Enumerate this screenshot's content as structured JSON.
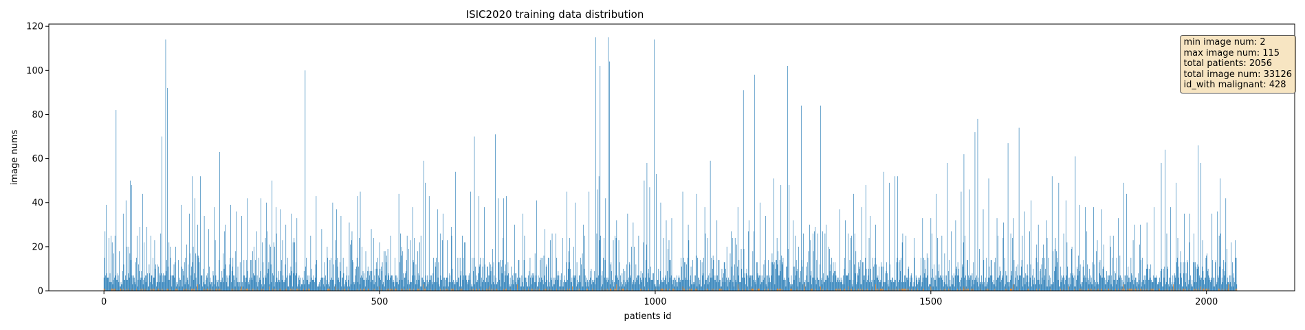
{
  "chart_data": {
    "type": "bar",
    "title": "ISIC2020 training data distribution",
    "xlabel": "patients id",
    "ylabel": "image nums",
    "xlim": [
      -100,
      2160
    ],
    "ylim": [
      0,
      121
    ],
    "xticks": [
      0,
      500,
      1000,
      1500,
      2000
    ],
    "yticks": [
      0,
      20,
      40,
      60,
      80,
      100,
      120
    ],
    "n_patients": 2056,
    "colors": {
      "total": "#1f77b4",
      "malignant": "#ff7f0e"
    },
    "series": [
      {
        "role": "total",
        "peaks": [
          [
            0,
            6
          ],
          [
            2,
            27
          ],
          [
            4,
            39
          ],
          [
            15,
            22
          ],
          [
            20,
            25
          ],
          [
            22,
            82
          ],
          [
            28,
            18
          ],
          [
            35,
            35
          ],
          [
            40,
            41
          ],
          [
            45,
            20
          ],
          [
            48,
            50
          ],
          [
            50,
            48
          ],
          [
            60,
            25
          ],
          [
            65,
            29
          ],
          [
            70,
            44
          ],
          [
            78,
            29
          ],
          [
            85,
            25
          ],
          [
            92,
            23
          ],
          [
            97,
            12
          ],
          [
            105,
            70
          ],
          [
            112,
            114
          ],
          [
            115,
            92
          ],
          [
            120,
            20
          ],
          [
            130,
            20
          ],
          [
            140,
            39
          ],
          [
            155,
            35
          ],
          [
            160,
            52
          ],
          [
            165,
            42
          ],
          [
            170,
            30
          ],
          [
            175,
            52
          ],
          [
            182,
            34
          ],
          [
            190,
            28
          ],
          [
            200,
            38
          ],
          [
            210,
            63
          ],
          [
            220,
            30
          ],
          [
            230,
            39
          ],
          [
            240,
            36
          ],
          [
            250,
            34
          ],
          [
            260,
            42
          ],
          [
            270,
            18
          ],
          [
            285,
            42
          ],
          [
            295,
            40
          ],
          [
            305,
            50
          ],
          [
            312,
            38
          ],
          [
            320,
            37
          ],
          [
            330,
            30
          ],
          [
            340,
            35
          ],
          [
            350,
            33
          ],
          [
            365,
            100
          ],
          [
            375,
            25
          ],
          [
            385,
            43
          ],
          [
            395,
            28
          ],
          [
            405,
            20
          ],
          [
            415,
            40
          ],
          [
            422,
            37
          ],
          [
            430,
            34
          ],
          [
            445,
            31
          ],
          [
            460,
            43
          ],
          [
            465,
            45
          ],
          [
            475,
            18
          ],
          [
            485,
            28
          ],
          [
            500,
            22
          ],
          [
            510,
            18
          ],
          [
            520,
            25
          ],
          [
            535,
            44
          ],
          [
            540,
            20
          ],
          [
            550,
            25
          ],
          [
            560,
            38
          ],
          [
            575,
            25
          ],
          [
            580,
            59
          ],
          [
            583,
            49
          ],
          [
            590,
            43
          ],
          [
            605,
            37
          ],
          [
            615,
            35
          ],
          [
            630,
            29
          ],
          [
            638,
            54
          ],
          [
            650,
            25
          ],
          [
            665,
            45
          ],
          [
            672,
            70
          ],
          [
            680,
            43
          ],
          [
            690,
            38
          ],
          [
            710,
            71
          ],
          [
            715,
            42
          ],
          [
            725,
            42
          ],
          [
            730,
            43
          ],
          [
            745,
            30
          ],
          [
            760,
            35
          ],
          [
            785,
            41
          ],
          [
            800,
            28
          ],
          [
            820,
            26
          ],
          [
            840,
            45
          ],
          [
            855,
            40
          ],
          [
            870,
            30
          ],
          [
            880,
            45
          ],
          [
            892,
            115
          ],
          [
            895,
            46
          ],
          [
            898,
            52
          ],
          [
            900,
            102
          ],
          [
            910,
            42
          ],
          [
            915,
            115
          ],
          [
            917,
            104
          ],
          [
            930,
            32
          ],
          [
            950,
            35
          ],
          [
            960,
            31
          ],
          [
            970,
            25
          ],
          [
            980,
            50
          ],
          [
            985,
            58
          ],
          [
            990,
            47
          ],
          [
            998,
            114
          ],
          [
            1002,
            53
          ],
          [
            1010,
            40
          ],
          [
            1020,
            32
          ],
          [
            1030,
            33
          ],
          [
            1050,
            45
          ],
          [
            1060,
            30
          ],
          [
            1075,
            44
          ],
          [
            1090,
            38
          ],
          [
            1100,
            59
          ],
          [
            1112,
            32
          ],
          [
            1130,
            20
          ],
          [
            1140,
            24
          ],
          [
            1150,
            38
          ],
          [
            1160,
            91
          ],
          [
            1170,
            32
          ],
          [
            1180,
            98
          ],
          [
            1190,
            40
          ],
          [
            1200,
            34
          ],
          [
            1215,
            51
          ],
          [
            1228,
            48
          ],
          [
            1240,
            102
          ],
          [
            1243,
            48
          ],
          [
            1250,
            32
          ],
          [
            1265,
            84
          ],
          [
            1280,
            30
          ],
          [
            1290,
            29
          ],
          [
            1300,
            84
          ],
          [
            1310,
            30
          ],
          [
            1320,
            15
          ],
          [
            1335,
            37
          ],
          [
            1345,
            32
          ],
          [
            1360,
            44
          ],
          [
            1375,
            38
          ],
          [
            1382,
            48
          ],
          [
            1390,
            34
          ],
          [
            1400,
            30
          ],
          [
            1415,
            54
          ],
          [
            1425,
            49
          ],
          [
            1435,
            52
          ],
          [
            1440,
            52
          ],
          [
            1455,
            25
          ],
          [
            1470,
            24
          ],
          [
            1485,
            33
          ],
          [
            1500,
            33
          ],
          [
            1510,
            44
          ],
          [
            1520,
            25
          ],
          [
            1530,
            58
          ],
          [
            1545,
            32
          ],
          [
            1555,
            45
          ],
          [
            1560,
            62
          ],
          [
            1570,
            46
          ],
          [
            1580,
            72
          ],
          [
            1585,
            78
          ],
          [
            1595,
            37
          ],
          [
            1605,
            51
          ],
          [
            1620,
            33
          ],
          [
            1632,
            31
          ],
          [
            1640,
            67
          ],
          [
            1650,
            33
          ],
          [
            1660,
            74
          ],
          [
            1670,
            36
          ],
          [
            1682,
            41
          ],
          [
            1695,
            30
          ],
          [
            1710,
            32
          ],
          [
            1720,
            52
          ],
          [
            1732,
            49
          ],
          [
            1745,
            41
          ],
          [
            1762,
            61
          ],
          [
            1770,
            39
          ],
          [
            1780,
            38
          ],
          [
            1795,
            38
          ],
          [
            1810,
            37
          ],
          [
            1825,
            25
          ],
          [
            1840,
            33
          ],
          [
            1850,
            49
          ],
          [
            1855,
            44
          ],
          [
            1870,
            30
          ],
          [
            1880,
            30
          ],
          [
            1892,
            31
          ],
          [
            1905,
            38
          ],
          [
            1918,
            58
          ],
          [
            1925,
            64
          ],
          [
            1935,
            38
          ],
          [
            1945,
            49
          ],
          [
            1960,
            35
          ],
          [
            1970,
            35
          ],
          [
            1985,
            66
          ],
          [
            1990,
            58
          ],
          [
            2000,
            16
          ],
          [
            2010,
            35
          ],
          [
            2020,
            36
          ],
          [
            2025,
            51
          ],
          [
            2035,
            42
          ],
          [
            2045,
            22
          ],
          [
            2052,
            23
          ],
          [
            2056,
            8
          ]
        ]
      },
      {
        "role": "malignant",
        "peaks": [
          [
            170,
            3
          ],
          [
            250,
            2
          ],
          [
            300,
            2
          ],
          [
            420,
            2
          ],
          [
            500,
            2
          ],
          [
            580,
            3
          ],
          [
            700,
            2
          ],
          [
            750,
            3
          ],
          [
            850,
            2
          ],
          [
            930,
            3
          ],
          [
            1050,
            2
          ],
          [
            1150,
            3
          ],
          [
            1270,
            3
          ],
          [
            1300,
            2
          ],
          [
            1350,
            2
          ],
          [
            1400,
            3
          ],
          [
            1500,
            2
          ],
          [
            1560,
            2
          ],
          [
            1650,
            3
          ],
          [
            1750,
            2
          ],
          [
            1850,
            3
          ],
          [
            1940,
            3
          ],
          [
            1990,
            2
          ],
          [
            2040,
            3
          ]
        ]
      }
    ]
  },
  "stats_box": {
    "lines": [
      "min image num: 2",
      "max image num: 115",
      "total patients: 2056",
      "total image num: 33126",
      "id_with malignant: 428"
    ]
  }
}
